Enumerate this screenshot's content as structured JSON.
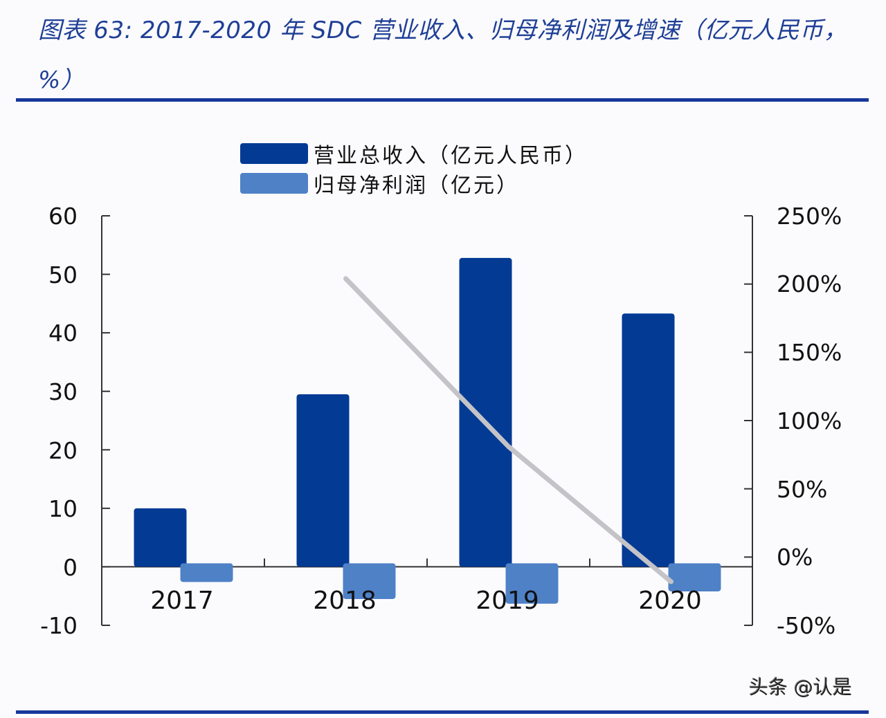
{
  "header": {
    "title": "图表 63:  2017-2020 年 SDC 营业收入、归母净利润及增速（亿元人民币，%）"
  },
  "legend": {
    "items": [
      {
        "label": "营业总收入（亿元人民币）",
        "color": "#033a94"
      },
      {
        "label": "归母净利润（亿元）",
        "color": "#4f81c7"
      }
    ]
  },
  "axes": {
    "left_ticks": [
      "60",
      "50",
      "40",
      "30",
      "20",
      "10",
      "0",
      "-10"
    ],
    "right_ticks": [
      "250%",
      "200%",
      "150%",
      "100%",
      "50%",
      "0%",
      "-50%"
    ],
    "categories": [
      "2017",
      "2018",
      "2019",
      "2020"
    ]
  },
  "watermark": "头条 @认是",
  "colors": {
    "revenue": "#033a94",
    "net_profit": "#4f81c7",
    "growth_line": "#c3c3c8",
    "rule": "#17379a"
  },
  "chart_data": {
    "type": "bar",
    "title": "2017-2020 年 SDC 营业收入、归母净利润及增速（亿元人民币，%）",
    "categories": [
      "2017",
      "2018",
      "2019",
      "2020"
    ],
    "series": [
      {
        "name": "营业总收入（亿元人民币）",
        "type": "bar",
        "axis": "left",
        "values": [
          10.0,
          29.5,
          52.8,
          43.3
        ]
      },
      {
        "name": "归母净利润（亿元）",
        "type": "bar",
        "axis": "left",
        "values": [
          -2.6,
          -5.5,
          -6.3,
          -4.2
        ]
      },
      {
        "name": "增速",
        "type": "line",
        "axis": "right",
        "unit": "%",
        "values": [
          null,
          204,
          81,
          -18
        ]
      }
    ],
    "xlabel": "",
    "ylabel": "",
    "ylim": [
      -10,
      60
    ],
    "y2lim": [
      -50,
      250
    ],
    "y_ticks": [
      -10,
      0,
      10,
      20,
      30,
      40,
      50,
      60
    ],
    "y2_ticks": [
      "-50%",
      "0%",
      "50%",
      "100%",
      "150%",
      "200%",
      "250%"
    ],
    "grid": false,
    "legend_position": "top"
  }
}
